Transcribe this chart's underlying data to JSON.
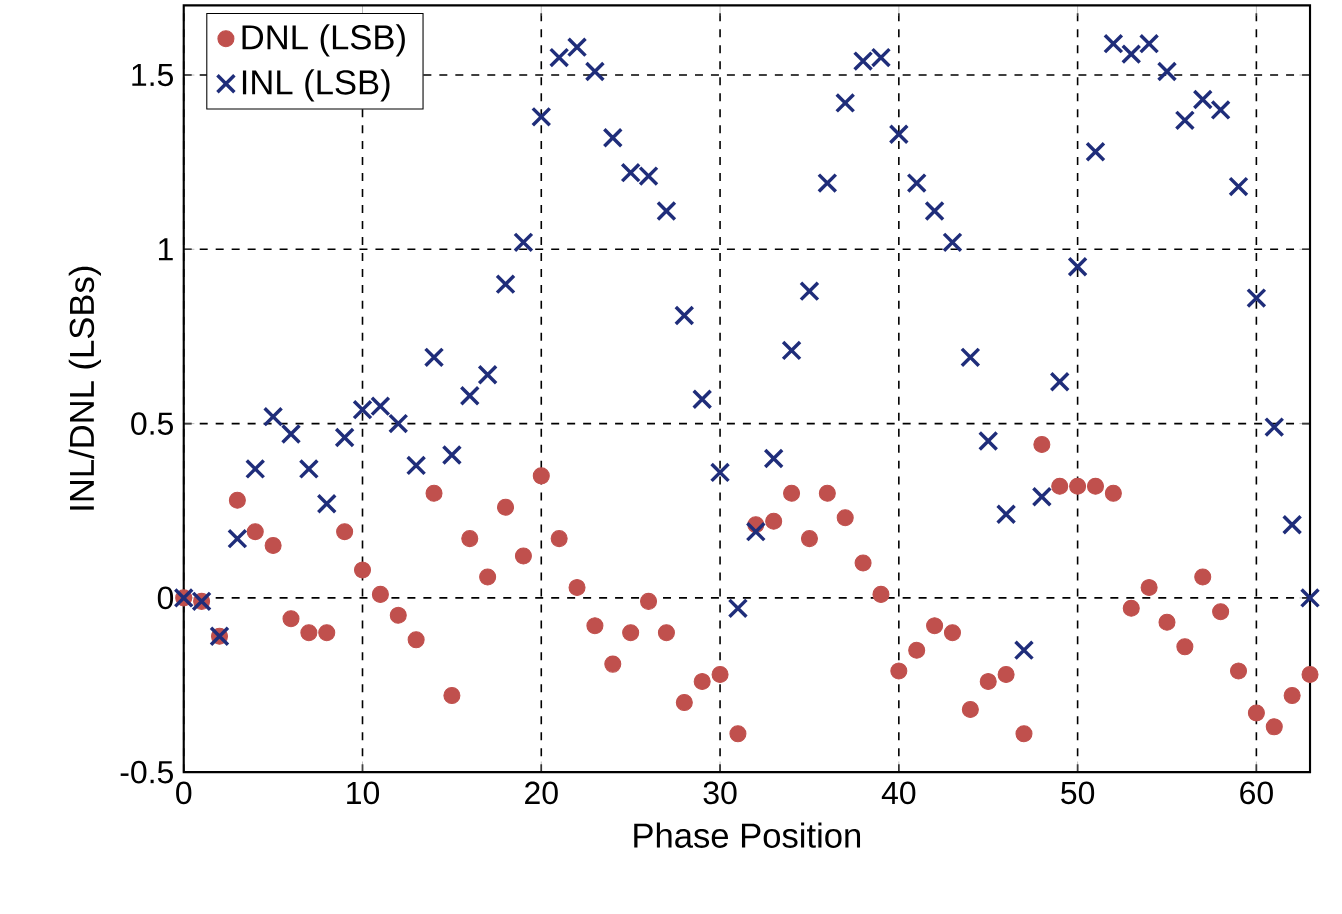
{
  "chart_data": {
    "type": "scatter",
    "xlabel": "Phase Position",
    "ylabel": "INL/DNL (LSBs)",
    "xlim": [
      0,
      63
    ],
    "ylim": [
      -0.5,
      1.7
    ],
    "xticks": [
      0,
      10,
      20,
      30,
      40,
      50,
      60
    ],
    "yticks": [
      -0.5,
      0,
      0.5,
      1,
      1.5
    ],
    "grid": true,
    "legend": "top left",
    "series": [
      {
        "name": "DNL (LSB)",
        "color": "#c0504d",
        "marker": "circle",
        "x": [
          0,
          1,
          2,
          3,
          4,
          5,
          6,
          7,
          8,
          9,
          10,
          11,
          12,
          13,
          14,
          15,
          16,
          17,
          18,
          19,
          20,
          21,
          22,
          23,
          24,
          25,
          26,
          27,
          28,
          29,
          30,
          31,
          32,
          33,
          34,
          35,
          36,
          37,
          38,
          39,
          40,
          41,
          42,
          43,
          44,
          45,
          46,
          47,
          48,
          49,
          50,
          51,
          52,
          53,
          54,
          55,
          56,
          57,
          58,
          59,
          60,
          61,
          62,
          63
        ],
        "values": [
          0,
          -0.01,
          -0.11,
          0.28,
          0.19,
          0.15,
          -0.06,
          -0.1,
          -0.1,
          0.19,
          0.08,
          0.01,
          -0.05,
          -0.12,
          0.3,
          -0.28,
          0.17,
          0.06,
          0.26,
          0.12,
          0.35,
          0.17,
          0.03,
          -0.08,
          -0.19,
          -0.1,
          -0.01,
          -0.1,
          -0.3,
          -0.24,
          -0.22,
          -0.39,
          0.21,
          0.22,
          0.3,
          0.17,
          0.3,
          0.23,
          0.1,
          0.01,
          -0.21,
          -0.15,
          -0.08,
          -0.1,
          -0.32,
          -0.24,
          -0.22,
          -0.39,
          0.44,
          0.32,
          0.32,
          0.32,
          0.3,
          -0.03,
          0.03,
          -0.07,
          -0.14,
          0.06,
          -0.04,
          -0.21,
          -0.33,
          -0.37,
          -0.28,
          -0.22
        ]
      },
      {
        "name": "INL (LSB)",
        "color": "#1f2d7a",
        "marker": "cross",
        "x": [
          0,
          1,
          2,
          3,
          4,
          5,
          6,
          7,
          8,
          9,
          10,
          11,
          12,
          13,
          14,
          15,
          16,
          17,
          18,
          19,
          20,
          21,
          22,
          23,
          24,
          25,
          26,
          27,
          28,
          29,
          30,
          31,
          32,
          33,
          34,
          35,
          36,
          37,
          38,
          39,
          40,
          41,
          42,
          43,
          44,
          45,
          46,
          47,
          48,
          49,
          50,
          51,
          52,
          53,
          54,
          55,
          56,
          57,
          58,
          59,
          60,
          61,
          62,
          63
        ],
        "values": [
          0,
          -0.01,
          -0.11,
          0.17,
          0.37,
          0.52,
          0.47,
          0.37,
          0.27,
          0.46,
          0.54,
          0.55,
          0.5,
          0.38,
          0.69,
          0.41,
          0.58,
          0.64,
          0.9,
          1.02,
          1.38,
          1.55,
          1.58,
          1.51,
          1.32,
          1.22,
          1.21,
          1.11,
          0.81,
          0.57,
          0.36,
          -0.03,
          0.19,
          0.4,
          0.71,
          0.88,
          1.19,
          1.42,
          1.54,
          1.55,
          1.33,
          1.19,
          1.11,
          1.02,
          0.69,
          0.45,
          0.24,
          -0.15,
          0.29,
          0.62,
          0.95,
          1.28,
          1.59,
          1.56,
          1.59,
          1.51,
          1.37,
          1.43,
          1.4,
          1.18,
          0.86,
          0.49,
          0.21,
          0
        ]
      }
    ]
  }
}
